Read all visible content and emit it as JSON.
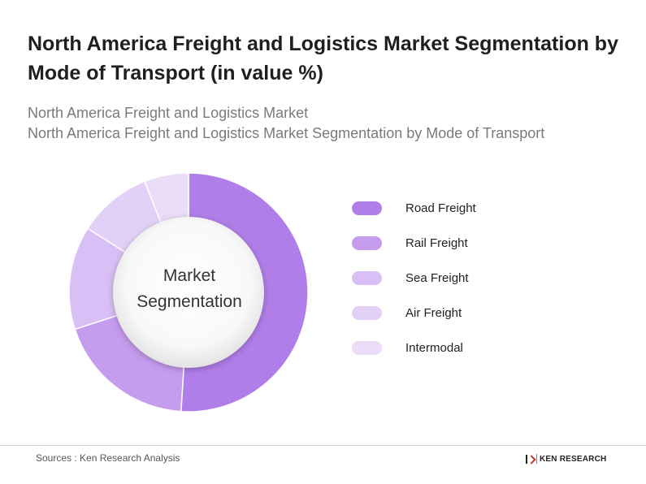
{
  "header": {
    "title": "North America Freight and Logistics Market Segmentation by Mode of Transport (in value %)",
    "subtitle_line1": "North America Freight and Logistics Market",
    "subtitle_line2": "North America Freight and Logistics Market Segmentation by Mode of Transport"
  },
  "chart_data": {
    "type": "pie",
    "variant": "donut",
    "center_label": "Market Segmentation",
    "categories": [
      "Road Freight",
      "Rail Freight",
      "Sea Freight",
      "Air Freight",
      "Intermodal"
    ],
    "values": [
      51,
      19,
      14,
      10,
      6
    ],
    "colors": [
      "#b07ee8",
      "#c59cee",
      "#d8bff5",
      "#e3d0f7",
      "#ebdcf8"
    ],
    "legend_position": "right"
  },
  "footer": {
    "source": "Sources : Ken Research Analysis",
    "brand": "KEN RESEARCH"
  }
}
